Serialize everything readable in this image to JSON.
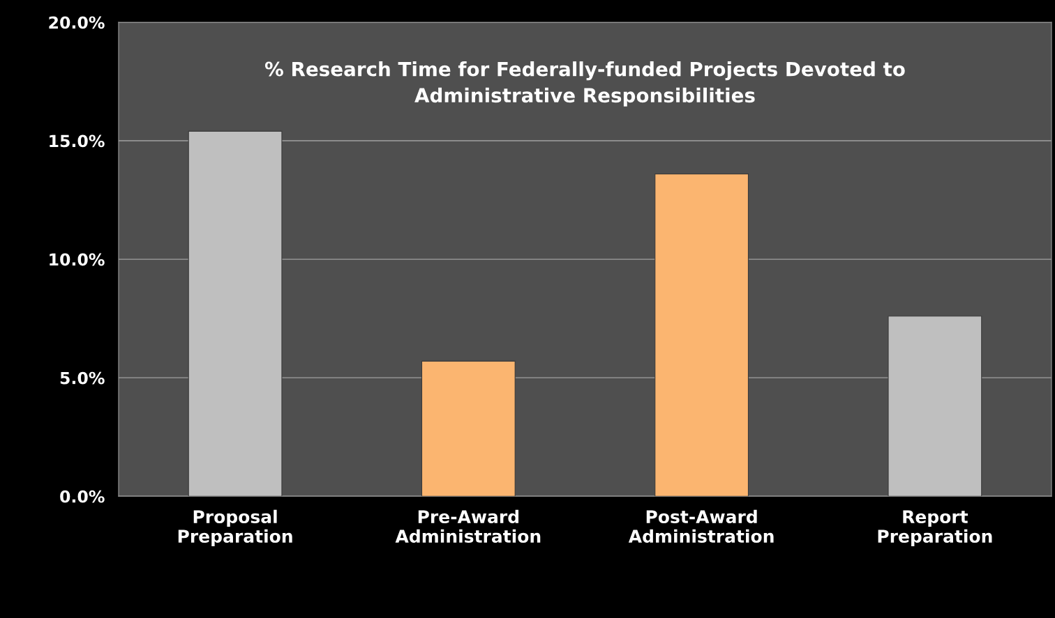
{
  "chart_data": {
    "type": "bar",
    "title": "% Research Time for Federally-funded Projects Devoted to\nAdministrative Responsibilities",
    "categories": [
      "Proposal\nPreparation",
      "Pre-Award\nAdministration",
      "Post-Award\nAdministration",
      "Report\nPreparation"
    ],
    "values": [
      15.4,
      5.7,
      13.6,
      7.6
    ],
    "colors": [
      "#bfbfbf",
      "#fbb570",
      "#fbb570",
      "#bfbfbf"
    ],
    "ylim": [
      0,
      20
    ],
    "yticks": [
      {
        "value": 0,
        "label": "0.0%"
      },
      {
        "value": 5,
        "label": "5.0%"
      },
      {
        "value": 10,
        "label": "10.0%"
      },
      {
        "value": 15,
        "label": "15.0%"
      },
      {
        "value": 20,
        "label": "20.0%"
      }
    ],
    "grid": "y"
  }
}
